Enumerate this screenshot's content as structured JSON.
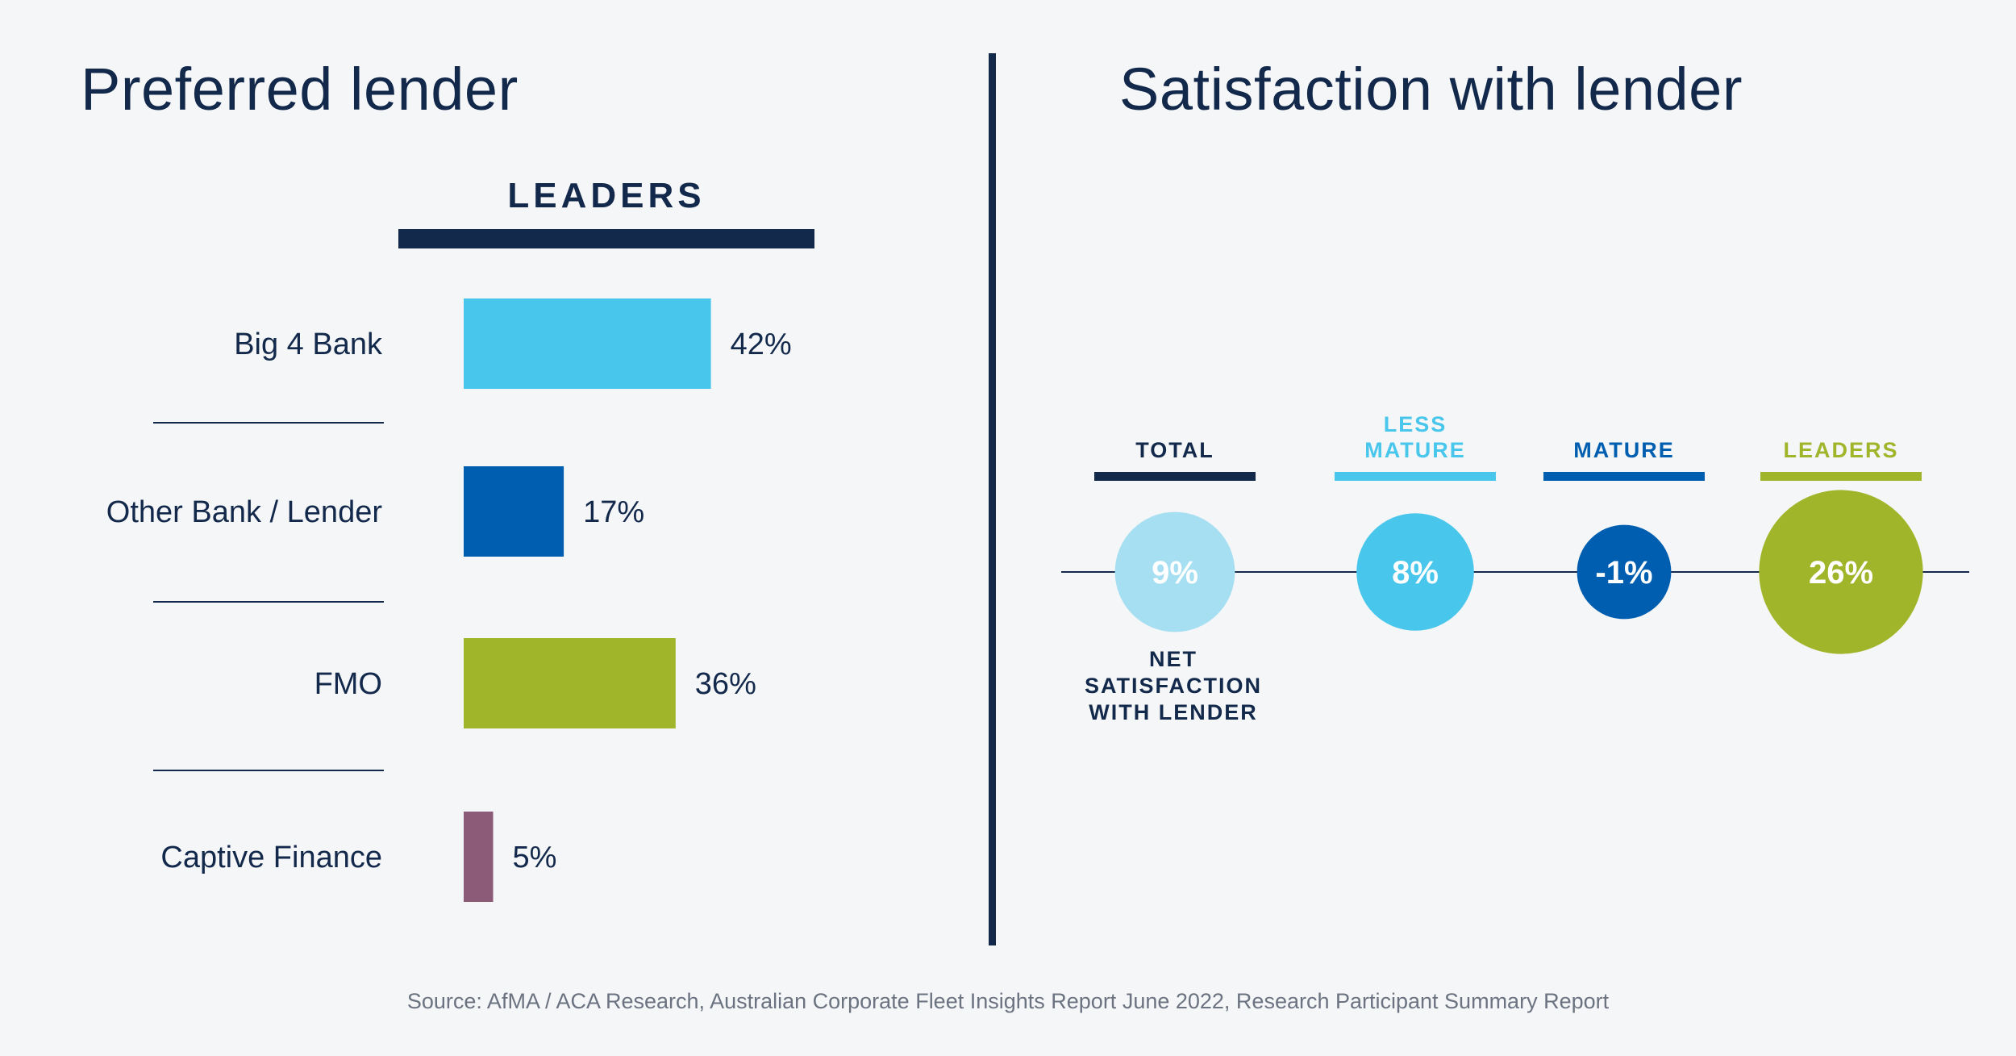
{
  "left_panel": {
    "title": "Preferred lender",
    "group_label": "LEADERS"
  },
  "right_panel": {
    "title": "Satisfaction with lender",
    "metric_label": [
      "NET",
      "SATISFACTION",
      "WITH LENDER"
    ]
  },
  "source": "Source: AfMA / ACA Research, Australian Corporate Fleet Insights Report June 2022, Research Participant Summary Report",
  "chart_data": [
    {
      "type": "bar",
      "orientation": "horizontal",
      "title": "Preferred lender",
      "series_name": "LEADERS",
      "categories": [
        "Big 4 Bank",
        "Other Bank / Lender",
        "FMO",
        "Captive Finance"
      ],
      "values": [
        42,
        17,
        36,
        5
      ],
      "value_labels": [
        "42%",
        "17%",
        "36%",
        "5%"
      ],
      "colors": [
        "#48c6ec",
        "#005eb0",
        "#a1b52a",
        "#8b5b78"
      ],
      "unit": "%",
      "xlim": [
        0,
        100
      ]
    },
    {
      "type": "bubble",
      "title": "Satisfaction with lender",
      "metric": "NET SATISFACTION WITH LENDER",
      "categories": [
        {
          "label_lines": [
            "TOTAL"
          ],
          "color": "#13294b",
          "bubble_color": "#a6dff2",
          "value": 9,
          "value_label": "9%"
        },
        {
          "label_lines": [
            "LESS",
            "MATURE"
          ],
          "color": "#48c6ec",
          "bubble_color": "#48c6ec",
          "value": 8,
          "value_label": "8%"
        },
        {
          "label_lines": [
            "MATURE"
          ],
          "color": "#005eb0",
          "bubble_color": "#005eb0",
          "value": -1,
          "value_label": "-1%"
        },
        {
          "label_lines": [
            "LEADERS"
          ],
          "color": "#a1b52a",
          "bubble_color": "#a1b52a",
          "value": 26,
          "value_label": "26%"
        }
      ]
    }
  ]
}
